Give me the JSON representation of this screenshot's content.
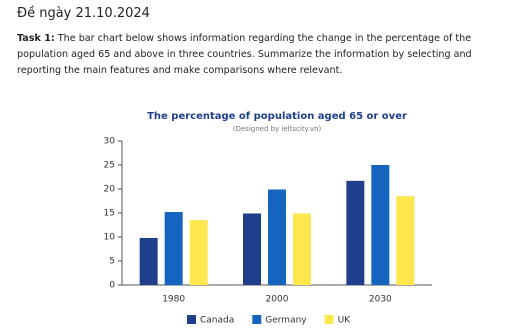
{
  "header": {
    "title": "Đề ngày 21.10.2024"
  },
  "task": {
    "label": "Task 1:",
    "text": "The bar chart below shows information regarding the change in the percentage of the population aged 65 and above in three countries. Summarize the information by selecting and reporting the main features and make comparisons where relevant."
  },
  "chart_data": {
    "type": "bar",
    "title": "The percentage of population aged 65 or over",
    "subtitle": "(Designed by ieltscity.vn)",
    "categories": [
      "1980",
      "2000",
      "2030"
    ],
    "series": [
      {
        "name": "Canada",
        "color": "#1f3f8c",
        "values": [
          9.8,
          14.9,
          21.7
        ]
      },
      {
        "name": "Germany",
        "color": "#1565c0",
        "values": [
          15.2,
          19.9,
          25
        ]
      },
      {
        "name": "UK",
        "color": "#fde74c",
        "values": [
          13.5,
          14.9,
          18.5
        ]
      }
    ],
    "ylim": [
      0,
      30
    ],
    "yticks": [
      0,
      5,
      10,
      15,
      20,
      25,
      30
    ],
    "grid": false,
    "legend": "bottom"
  }
}
